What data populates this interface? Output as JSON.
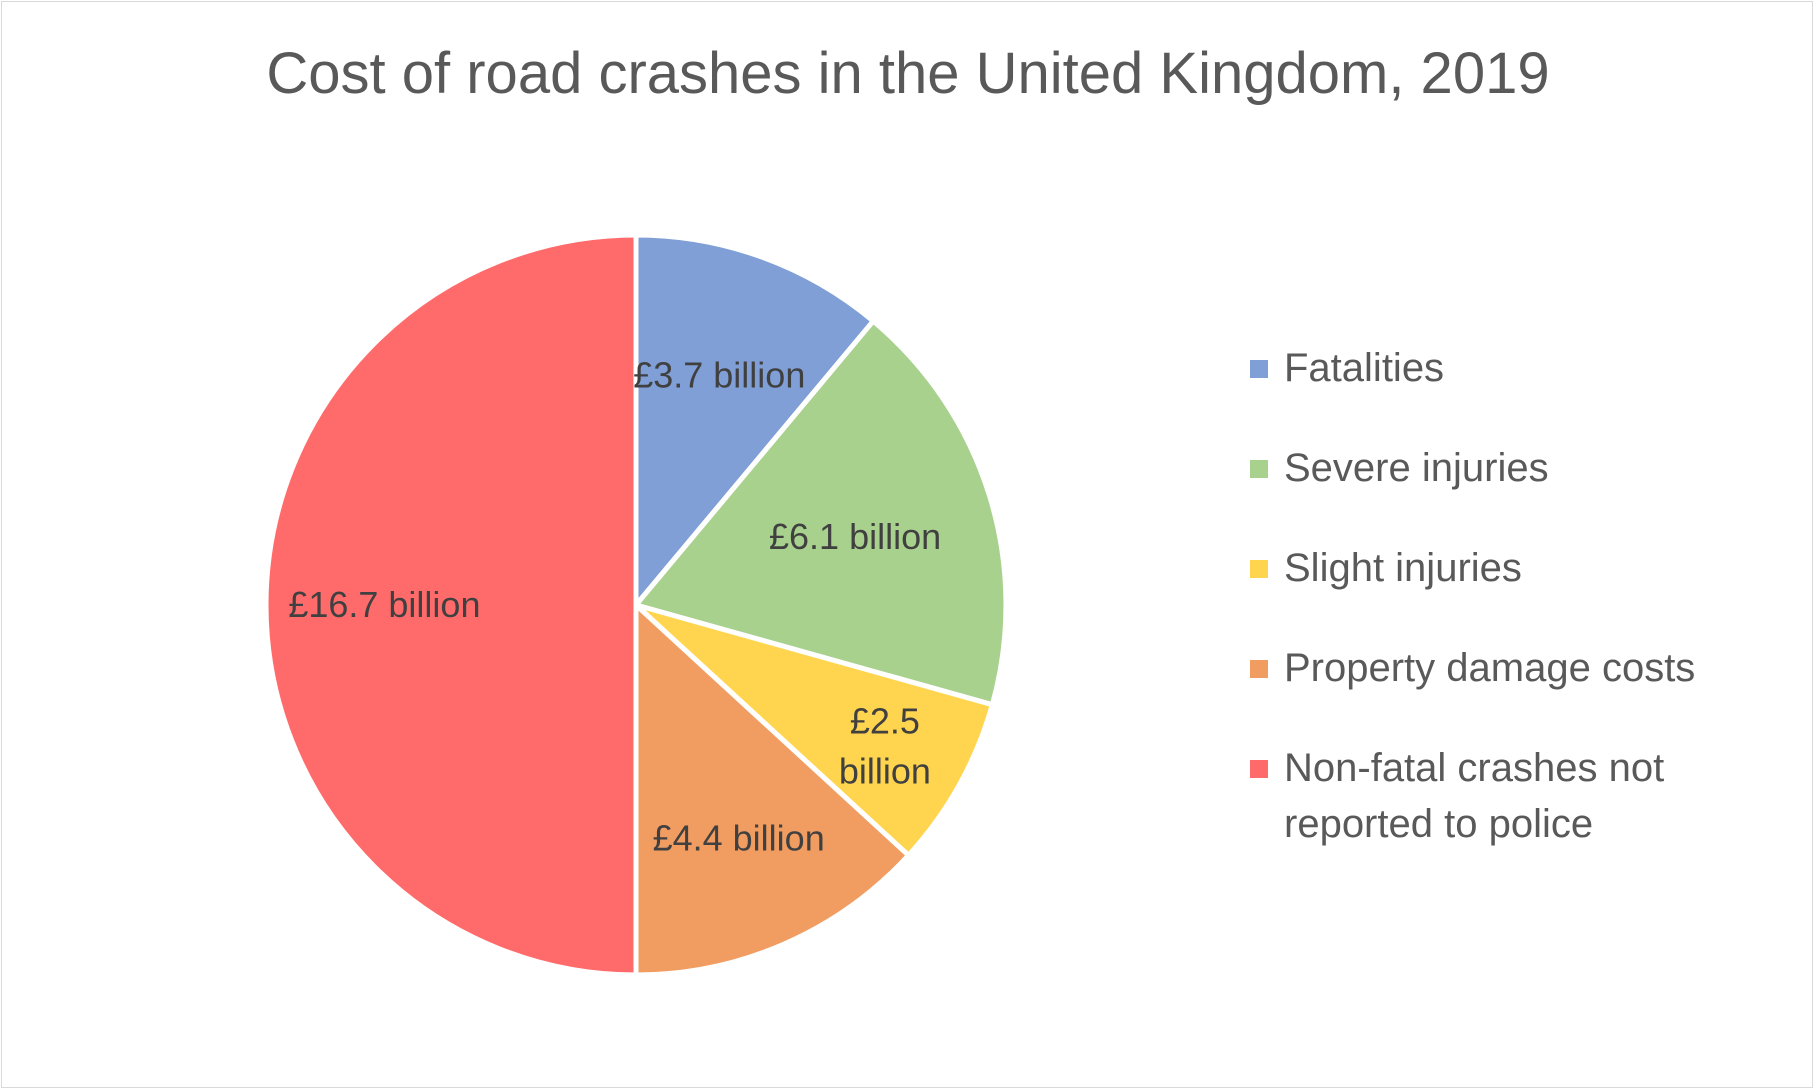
{
  "chart_data": {
    "type": "pie",
    "title": "Cost of road crashes in the United Kingdom, 2019",
    "unit": "£ billion",
    "legend_position": "right",
    "slices": [
      {
        "name": "Fatalities",
        "value": 3.7,
        "label": "£3.7 billion",
        "color": "#7f9fd6"
      },
      {
        "name": "Severe injuries",
        "value": 6.1,
        "label": "£6.1 billion",
        "color": "#a9d18e"
      },
      {
        "name": "Slight injuries",
        "value": 2.5,
        "label": "£2.5 billion",
        "color": "#ffd54f"
      },
      {
        "name": "Property damage costs",
        "value": 4.4,
        "label": "£4.4 billion",
        "color": "#f19d62"
      },
      {
        "name": "Non-fatal crashes not reported to police",
        "value": 16.7,
        "label": "£16.7 billion",
        "color": "#ff6b6b"
      }
    ]
  }
}
